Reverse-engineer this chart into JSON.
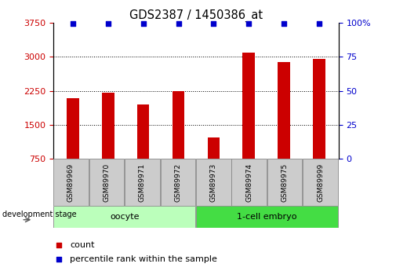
{
  "title": "GDS2387 / 1450386_at",
  "samples": [
    "GSM89969",
    "GSM89970",
    "GSM89971",
    "GSM89972",
    "GSM89973",
    "GSM89974",
    "GSM89975",
    "GSM89999"
  ],
  "counts": [
    2080,
    2200,
    1940,
    2250,
    1220,
    3100,
    2880,
    2960
  ],
  "percentiles": [
    100,
    100,
    100,
    100,
    100,
    100,
    100,
    100
  ],
  "groups": [
    {
      "label": "oocyte",
      "indices": [
        0,
        1,
        2,
        3
      ],
      "color": "#bbffbb"
    },
    {
      "label": "1-cell embryo",
      "indices": [
        4,
        5,
        6,
        7
      ],
      "color": "#44dd44"
    }
  ],
  "bar_color": "#cc0000",
  "percentile_color": "#0000cc",
  "ylim_left": [
    750,
    3750
  ],
  "ylim_right": [
    0,
    100
  ],
  "yticks_left": [
    750,
    1500,
    2250,
    3000,
    3750
  ],
  "yticks_right": [
    0,
    25,
    50,
    75,
    100
  ],
  "grid_lines": [
    1500,
    2250,
    3000
  ],
  "legend_items": [
    {
      "label": "count",
      "color": "#cc0000"
    },
    {
      "label": "percentile rank within the sample",
      "color": "#0000cc"
    }
  ],
  "dev_stage_label": "development stage",
  "bar_width": 0.35
}
